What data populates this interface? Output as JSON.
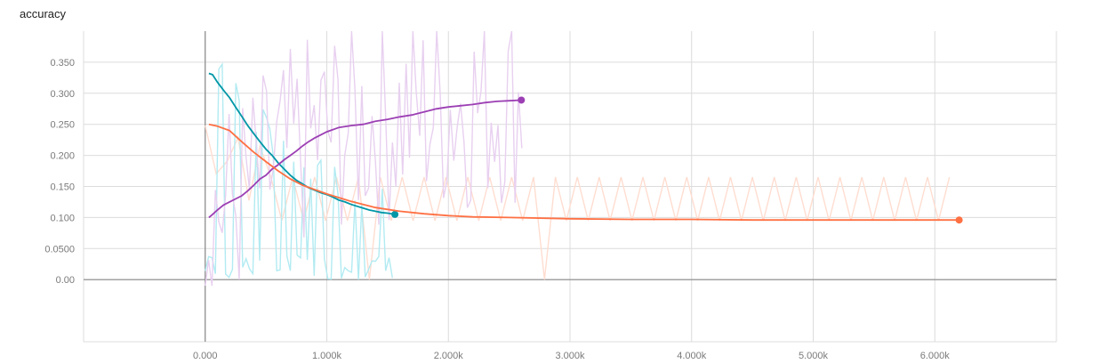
{
  "chart_title": "accuracy",
  "chart_data": {
    "type": "line",
    "title": "accuracy",
    "xlabel": "",
    "ylabel": "",
    "xlim": [
      -1000,
      7000
    ],
    "ylim": [
      -0.1,
      0.4
    ],
    "x_ticks": [
      0,
      1000,
      2000,
      3000,
      4000,
      5000,
      6000
    ],
    "x_tick_labels": [
      "0.000",
      "1.000k",
      "2.000k",
      "3.000k",
      "4.000k",
      "5.000k",
      "6.000k"
    ],
    "y_ticks": [
      0,
      0.05,
      0.1,
      0.15,
      0.2,
      0.25,
      0.3,
      0.35
    ],
    "y_tick_labels": [
      "0.00",
      "0.0500",
      "0.100",
      "0.150",
      "0.200",
      "0.250",
      "0.300",
      "0.350"
    ],
    "grid": true,
    "legend": "none",
    "series": [
      {
        "color": "#0097a7",
        "raw_color": "#b2ebf2",
        "smoothed": {
          "x": [
            30,
            60,
            100,
            150,
            200,
            250,
            300,
            350,
            400,
            450,
            500,
            550,
            600,
            650,
            700,
            750,
            800,
            850,
            900,
            950,
            1000,
            1050,
            1100,
            1150,
            1200,
            1250,
            1300,
            1350,
            1400,
            1450,
            1500,
            1560
          ],
          "y": [
            0.332,
            0.33,
            0.318,
            0.305,
            0.293,
            0.278,
            0.263,
            0.248,
            0.235,
            0.222,
            0.21,
            0.2,
            0.188,
            0.178,
            0.168,
            0.16,
            0.154,
            0.148,
            0.144,
            0.14,
            0.137,
            0.133,
            0.128,
            0.125,
            0.121,
            0.118,
            0.115,
            0.112,
            0.11,
            0.108,
            0.107,
            0.105
          ]
        },
        "raw_range": [
          0,
          1560
        ]
      },
      {
        "color": "#9c3fb4",
        "raw_color": "#e8d0f0",
        "smoothed": {
          "x": [
            30,
            60,
            100,
            150,
            200,
            250,
            300,
            350,
            400,
            450,
            500,
            550,
            600,
            650,
            700,
            750,
            800,
            850,
            900,
            950,
            1000,
            1100,
            1200,
            1300,
            1400,
            1500,
            1600,
            1700,
            1800,
            1900,
            2000,
            2100,
            2200,
            2300,
            2400,
            2500,
            2600
          ],
          "y": [
            0.1,
            0.105,
            0.112,
            0.12,
            0.125,
            0.13,
            0.135,
            0.143,
            0.152,
            0.162,
            0.168,
            0.178,
            0.185,
            0.193,
            0.2,
            0.207,
            0.215,
            0.222,
            0.228,
            0.233,
            0.238,
            0.245,
            0.248,
            0.25,
            0.255,
            0.258,
            0.262,
            0.265,
            0.27,
            0.275,
            0.278,
            0.28,
            0.282,
            0.285,
            0.287,
            0.288,
            0.289
          ]
        },
        "raw_range": [
          0,
          2620
        ]
      },
      {
        "color": "#ff7043",
        "raw_color": "#ffddd0",
        "smoothed": {
          "x": [
            30,
            100,
            200,
            300,
            400,
            500,
            600,
            700,
            800,
            900,
            1000,
            1100,
            1200,
            1300,
            1400,
            1500,
            1600,
            1800,
            2000,
            2200,
            2500,
            3000,
            3500,
            4000,
            4500,
            5000,
            5500,
            6000,
            6200
          ],
          "y": [
            0.25,
            0.247,
            0.24,
            0.222,
            0.205,
            0.19,
            0.175,
            0.162,
            0.152,
            0.145,
            0.138,
            0.132,
            0.126,
            0.121,
            0.116,
            0.113,
            0.11,
            0.106,
            0.103,
            0.101,
            0.1,
            0.098,
            0.097,
            0.097,
            0.096,
            0.096,
            0.096,
            0.096,
            0.096
          ]
        },
        "raw_range": [
          0,
          6200
        ]
      }
    ]
  }
}
